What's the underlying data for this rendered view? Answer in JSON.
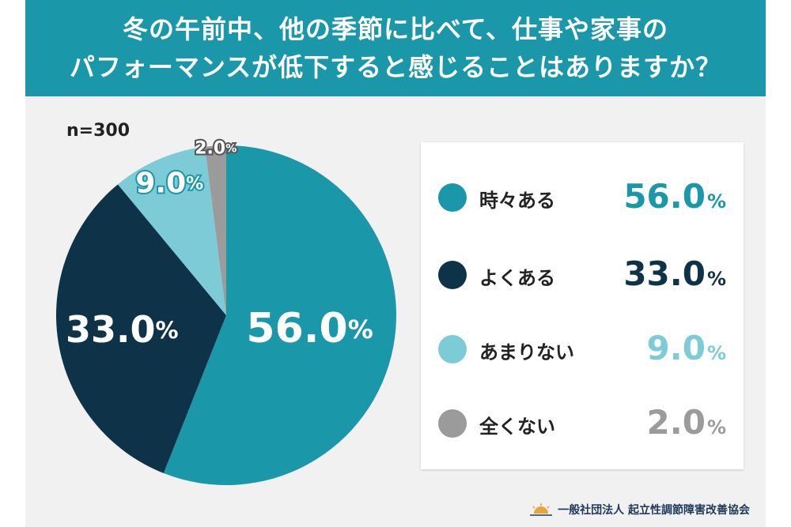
{
  "header": {
    "title_line1": "冬の午前中、他の季節に比べて、仕事や家事の",
    "title_line2": "パフォーマンスが低下すると感じることはありますか？"
  },
  "sample_size": "n=300",
  "colors": {
    "header_bg": "#1a97a8",
    "sometimes": "#1a97a8",
    "often": "#0e3349",
    "rarely": "#7ccbd6",
    "never": "#9b9b9b"
  },
  "chart_data": {
    "type": "pie",
    "title": "冬の午前中、他の季節に比べて、仕事や家事のパフォーマンスが低下すると感じることはありますか？",
    "categories": [
      "時々ある",
      "よくある",
      "あまりない",
      "全くない"
    ],
    "values": [
      56.0,
      33.0,
      9.0,
      2.0
    ],
    "value_labels": [
      "56.0",
      "33.0",
      "9.0",
      "2.0"
    ],
    "unit": "%",
    "legend_placement": "right"
  },
  "legend": [
    {
      "label": "時々ある",
      "num": "56.0",
      "pct": "%"
    },
    {
      "label": "よくある",
      "num": "33.0",
      "pct": "%"
    },
    {
      "label": "あまりない",
      "num": "9.0",
      "pct": "%"
    },
    {
      "label": "全くない",
      "num": "2.0",
      "pct": "%"
    }
  ],
  "footer": {
    "org": "一般社団法人 起立性調節障害改善協会",
    "logo_icon": "sunrise-icon"
  }
}
